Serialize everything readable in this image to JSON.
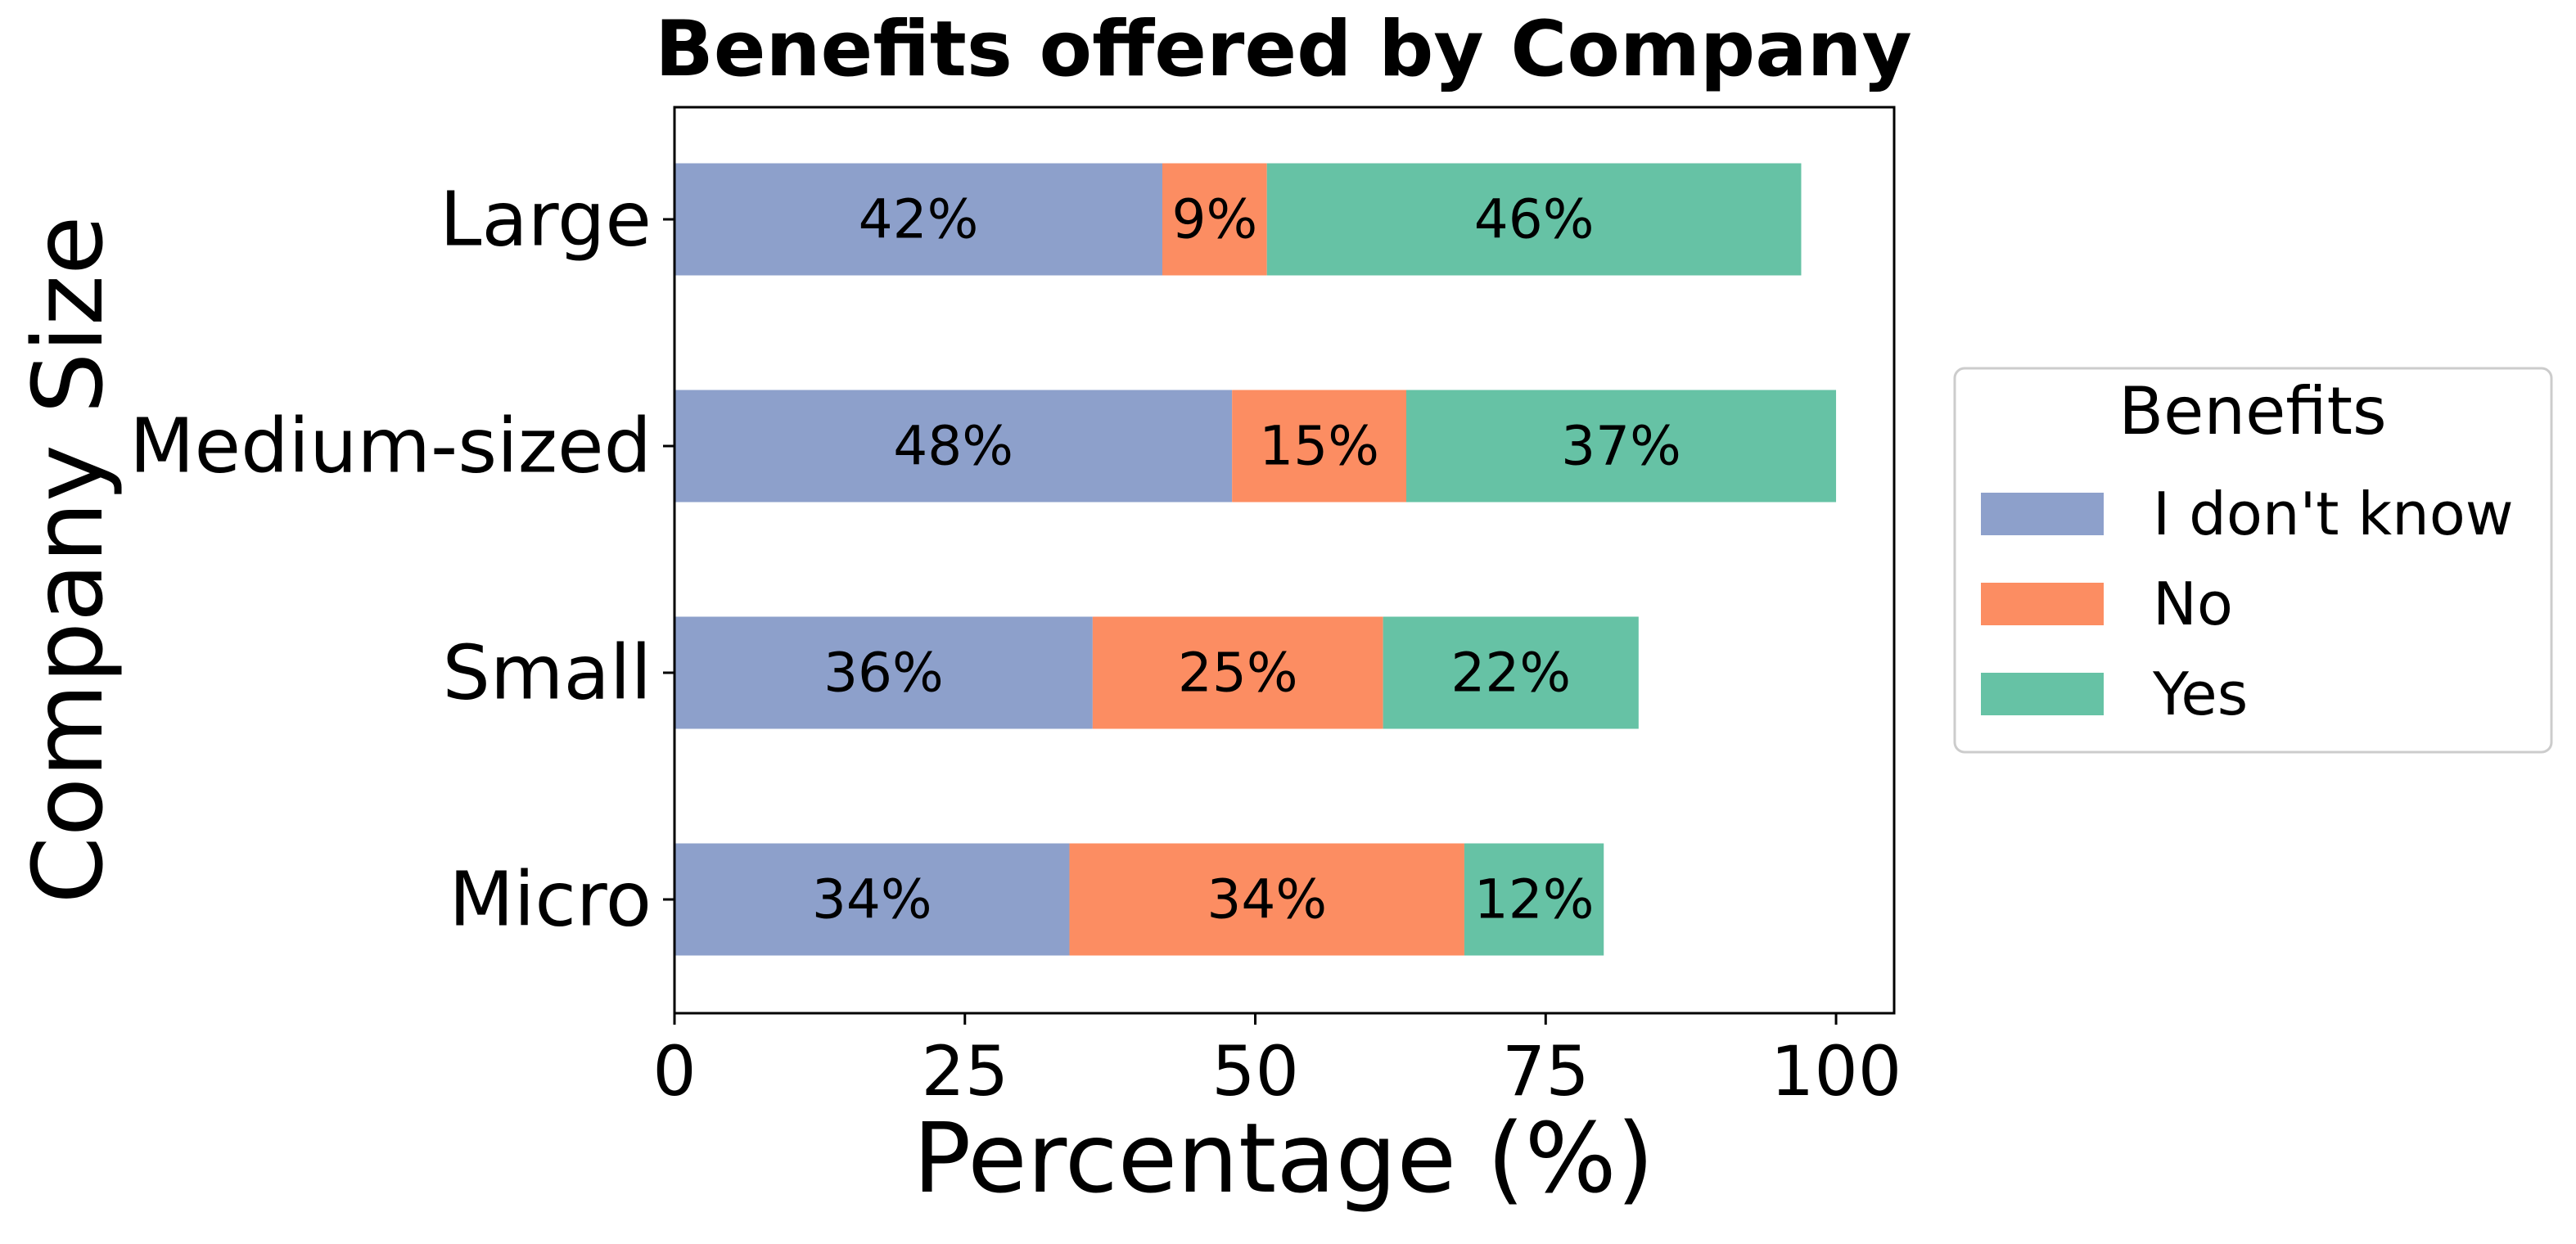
{
  "chart_data": {
    "type": "bar",
    "orientation": "horizontal",
    "stacked": true,
    "title": "Benefits offered by Company",
    "xlabel": "Percentage (%)",
    "ylabel": "Company Size",
    "categories": [
      "Micro",
      "Small",
      "Medium-sized",
      "Large"
    ],
    "xlim": [
      0,
      105
    ],
    "xticks": [
      0,
      25,
      50,
      75,
      100
    ],
    "xtick_labels": [
      "0",
      "25",
      "50",
      "75",
      "100"
    ],
    "grid": false,
    "legend": {
      "title": "Benefits",
      "placement": "outside-right"
    },
    "series": [
      {
        "name": "I don't know",
        "color": "#8da0cb",
        "values": [
          34,
          36,
          48,
          42
        ],
        "labels": [
          "34%",
          "36%",
          "48%",
          "42%"
        ]
      },
      {
        "name": "No",
        "color": "#fc8d62",
        "values": [
          34,
          25,
          15,
          9
        ],
        "labels": [
          "34%",
          "25%",
          "15%",
          "9%"
        ]
      },
      {
        "name": "Yes",
        "color": "#66c2a5",
        "values": [
          12,
          22,
          37,
          46
        ],
        "labels": [
          "12%",
          "22%",
          "37%",
          "46%"
        ]
      }
    ]
  }
}
